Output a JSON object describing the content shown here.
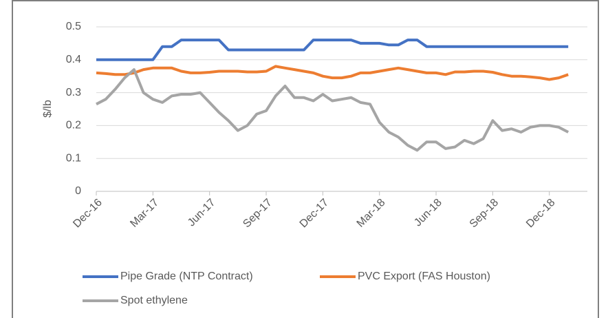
{
  "chart_data": {
    "type": "line",
    "y_label": "$/lb",
    "categories": [
      "Dec-16",
      null,
      null,
      null,
      null,
      null,
      "Mar-17",
      null,
      null,
      null,
      null,
      null,
      "Jun-17",
      null,
      null,
      null,
      null,
      null,
      "Sep-17",
      null,
      null,
      null,
      null,
      null,
      "Dec-17",
      null,
      null,
      null,
      null,
      null,
      "Mar-18",
      null,
      null,
      null,
      null,
      null,
      "Jun-18",
      null,
      null,
      null,
      null,
      null,
      "Sep-18",
      null,
      null,
      null,
      null,
      null,
      "Dec-18",
      null,
      null
    ],
    "series": [
      {
        "name": "Pipe Grade (NTP Contract)",
        "color": "#4472c4",
        "values": [
          0.4,
          0.4,
          0.4,
          0.4,
          0.4,
          0.4,
          0.4,
          0.44,
          0.44,
          0.46,
          0.46,
          0.46,
          0.46,
          0.46,
          0.43,
          0.43,
          0.43,
          0.43,
          0.43,
          0.43,
          0.43,
          0.43,
          0.43,
          0.46,
          0.46,
          0.46,
          0.46,
          0.46,
          0.45,
          0.45,
          0.45,
          0.445,
          0.445,
          0.46,
          0.46,
          0.44,
          0.44,
          0.44,
          0.44,
          0.44,
          0.44,
          0.44,
          0.44,
          0.44,
          0.44,
          0.44,
          0.44,
          0.44,
          0.44,
          0.44,
          0.44
        ]
      },
      {
        "name": "PVC Export (FAS Houston)",
        "color": "#ed7d31",
        "values": [
          0.36,
          0.358,
          0.355,
          0.355,
          0.36,
          0.37,
          0.375,
          0.375,
          0.375,
          0.365,
          0.36,
          0.36,
          0.362,
          0.365,
          0.365,
          0.365,
          0.363,
          0.363,
          0.365,
          0.38,
          0.375,
          0.37,
          0.365,
          0.36,
          0.35,
          0.345,
          0.345,
          0.35,
          0.36,
          0.36,
          0.365,
          0.37,
          0.375,
          0.37,
          0.365,
          0.36,
          0.36,
          0.355,
          0.363,
          0.363,
          0.365,
          0.365,
          0.362,
          0.355,
          0.35,
          0.35,
          0.348,
          0.345,
          0.34,
          0.345,
          0.355
        ]
      },
      {
        "name": "Spot ethylene",
        "color": "#a5a5a5",
        "values": [
          0.265,
          0.28,
          0.31,
          0.345,
          0.37,
          0.3,
          0.28,
          0.27,
          0.29,
          0.295,
          0.295,
          0.3,
          0.27,
          0.24,
          0.215,
          0.185,
          0.2,
          0.235,
          0.245,
          0.29,
          0.32,
          0.285,
          0.285,
          0.275,
          0.295,
          0.275,
          0.28,
          0.285,
          0.27,
          0.265,
          0.21,
          0.18,
          0.165,
          0.14,
          0.125,
          0.15,
          0.15,
          0.13,
          0.135,
          0.155,
          0.145,
          0.16,
          0.215,
          0.185,
          0.19,
          0.18,
          0.195,
          0.2,
          0.2,
          0.195,
          0.18
        ]
      }
    ],
    "ylim": [
      0,
      0.5
    ],
    "yticks": [
      0,
      0.1,
      0.2,
      0.3,
      0.4,
      0.5
    ],
    "grid": true
  }
}
